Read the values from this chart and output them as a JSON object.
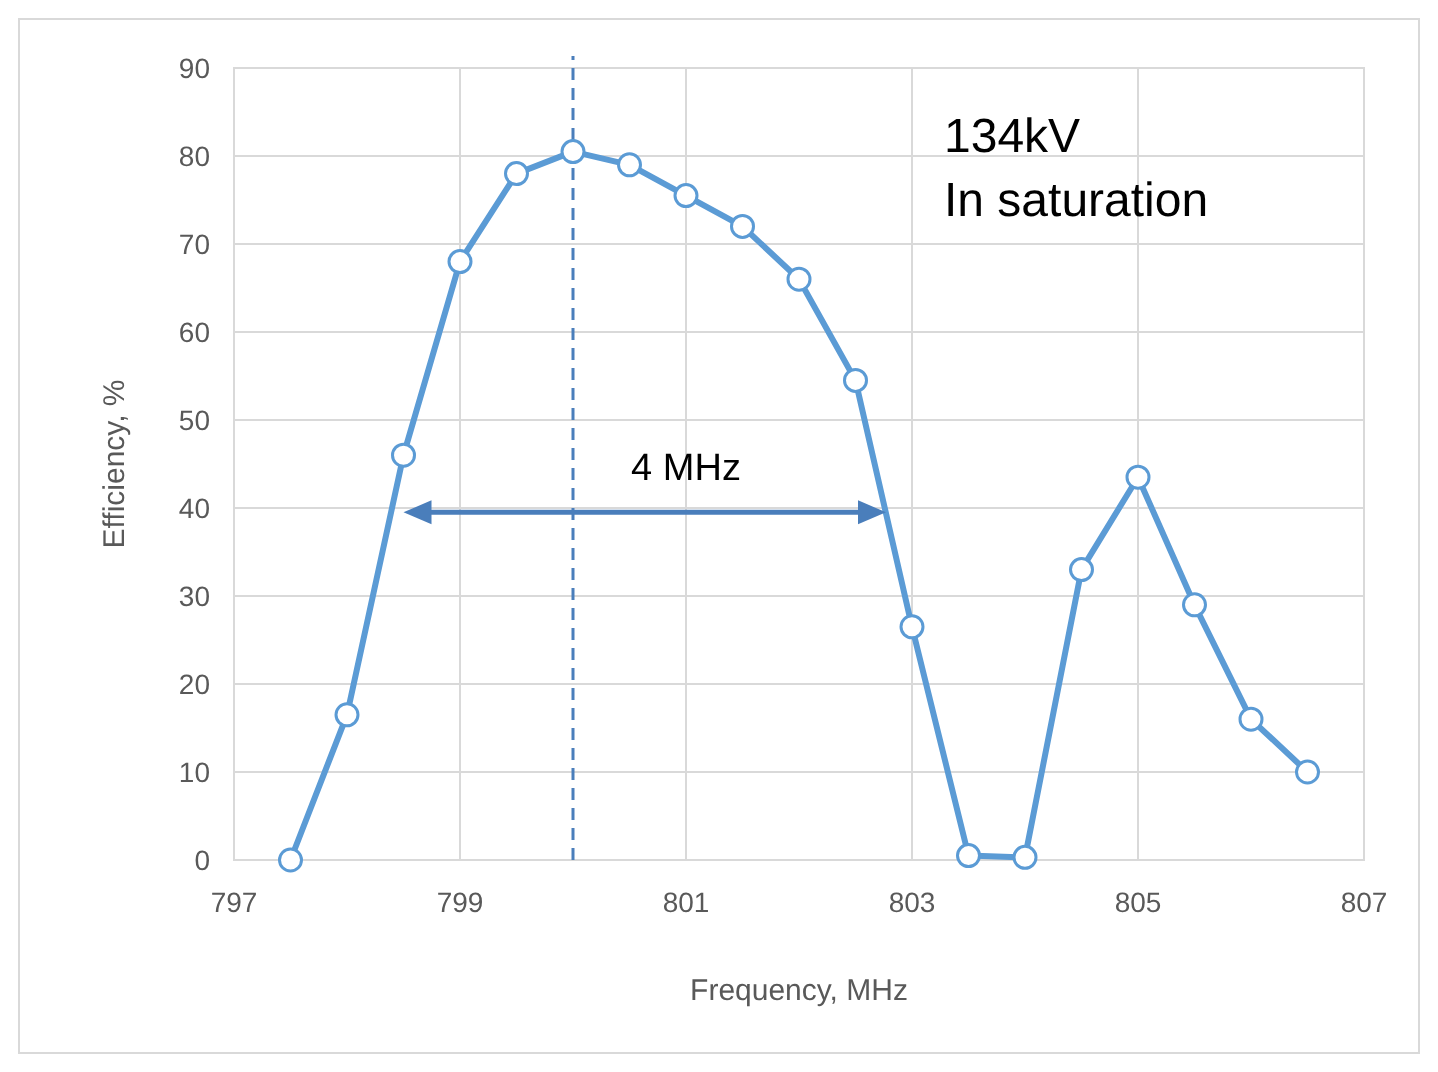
{
  "chart_data": {
    "type": "line",
    "xlabel": "Frequency, MHz",
    "ylabel": "Efficiency, %",
    "x": [
      797.5,
      798,
      798.5,
      799,
      799.5,
      800,
      800.5,
      801,
      801.5,
      802,
      802.5,
      803,
      803.5,
      804,
      804.5,
      805,
      805.5,
      806,
      806.5
    ],
    "series": [
      {
        "color": "#5b9bd5",
        "values": [
          0,
          16.5,
          46,
          68,
          78,
          80.5,
          79,
          75.5,
          72,
          66,
          54.5,
          26.5,
          0.5,
          0.3,
          33,
          43.5,
          29,
          16,
          10
        ]
      }
    ],
    "xlim": [
      797,
      807
    ],
    "xticks": [
      797,
      799,
      801,
      803,
      805,
      807
    ],
    "ylim": [
      0,
      90
    ],
    "yticks": [
      0,
      10,
      20,
      30,
      40,
      50,
      60,
      70,
      80,
      90
    ],
    "grid": true,
    "marker": "circle",
    "line_style": "solid",
    "ref_lines": [
      {
        "axis": "x",
        "value": 800,
        "color": "#4a7ebb",
        "line_style": "dashed"
      }
    ],
    "annotations": [
      "4 MHz",
      "134kV",
      "In saturation"
    ]
  }
}
